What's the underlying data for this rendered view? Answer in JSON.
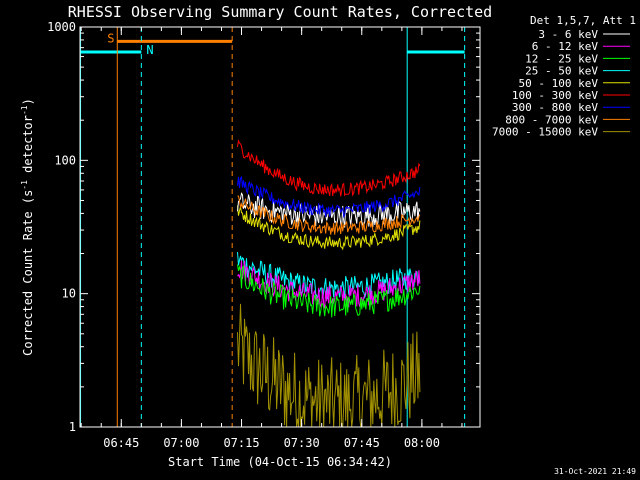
{
  "chart_data": {
    "type": "line",
    "title": "RHESSI Observing Summary Count Rates, Corrected",
    "xlabel": "Start Time (04-Oct-15 06:34:42)",
    "ylabel": "Corrected Count Rate (s",
    "ylabel_sup": "-1",
    "ylabel_mid": " detector",
    "ylabel_sup2": "-1",
    "ylabel_end": ")",
    "yscale": "log",
    "ylim": [
      1,
      1000
    ],
    "xlim": [
      "06:34:42",
      "08:14:30"
    ],
    "x_ticks": [
      "06:45",
      "07:00",
      "07:15",
      "07:30",
      "07:45",
      "08:00"
    ],
    "y_ticks": [
      "1",
      "10",
      "100",
      "1000"
    ],
    "legend_title": "Det 1,5,7, Att 1",
    "legend_position": "top-right",
    "timestamp": "31-Oct-2021 21:49",
    "series": [
      {
        "name": "3 - 6 keV",
        "color": "#ffffff",
        "start": 48,
        "min": 38,
        "end": 42
      },
      {
        "name": "6 - 12 keV",
        "color": "#ff00ff",
        "start": 16,
        "min": 9.5,
        "end": 13
      },
      {
        "name": "12 - 25 keV",
        "color": "#00ff00",
        "start": 14,
        "min": 8,
        "end": 11
      },
      {
        "name": "25 - 50 keV",
        "color": "#00ffff",
        "start": 18,
        "min": 11,
        "end": 14
      },
      {
        "name": "50 - 100 keV",
        "color": "#e0e000",
        "start": 42,
        "min": 24,
        "end": 32
      },
      {
        "name": "100 - 300 keV",
        "color": "#ff0000",
        "start": 130,
        "min": 60,
        "end": 85
      },
      {
        "name": "300 - 800 keV",
        "color": "#0000ff",
        "start": 70,
        "min": 42,
        "end": 58
      },
      {
        "name": "800 - 7000 keV",
        "color": "#ff8000",
        "start": 50,
        "min": 31,
        "end": 38
      },
      {
        "name": "7000 - 15000 keV",
        "color": "#a09000",
        "start": 4,
        "min": 1.5,
        "end": 2.5
      }
    ],
    "annotations": {
      "saa_label": "S",
      "night_label": "N",
      "saa_color": "#ff8000",
      "night_color": "#00ffff"
    }
  }
}
